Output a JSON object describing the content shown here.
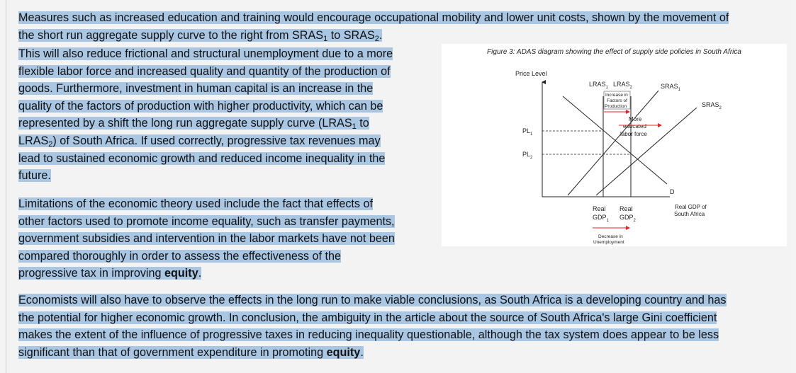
{
  "para1": {
    "line1": "Measures such as increased education and training would encourage occupational mobility and lower unit costs, shown by the movement of",
    "line2_a": "the short run aggregate supply curve to the right from SRAS",
    "line2_b": " to SRAS",
    "line2_c": ".",
    "sub1": "1",
    "sub2": "2"
  },
  "para2": {
    "l1": "This will also reduce frictional and structural unemployment due to a more",
    "l2": "flexible labor force and increased quality and quantity of the production of",
    "l3": "goods. Furthermore, investment in human capital is an increase in the",
    "l4": "quality of the factors of production with higher productivity, which can be",
    "l5_a": "represented by a shift the long run aggregate supply curve (LRAS",
    "l5_b": " to",
    "l6_a": "LRAS",
    "l6_b": ") of South Africa. If used correctly, progressive tax revenues may",
    "l7": "lead to sustained economic growth and reduced income inequality in the",
    "l8": "future.",
    "sub1": "1",
    "sub2": "2"
  },
  "para3": {
    "l1": "Limitations of the economic theory used include the fact that effects of",
    "l2": "other factors used to promote income equality, such as transfer payments,",
    "l3": "government subsidies and intervention in the labor markets have not been",
    "l4": "compared thoroughly in order to assess the effectiveness of the",
    "l5_a": "progressive tax in improving ",
    "l5_b": "equity",
    "l5_c": "."
  },
  "para4": {
    "l1": "Economists will also have to observe the effects in the long run to make viable conclusions, as South Africa is a developing country and has",
    "l2": "the potential for higher economic growth. In conclusion, the ambiguity in the article about the source of South Africa's large Gini coefficient",
    "l3": "makes the extent of the influence of progressive taxes in reducing inequality questionable, although the tax system does appear to be less",
    "l4_a": "significant than that of government expenditure in promoting ",
    "l4_b": "equity",
    "l4_c": "."
  },
  "figure": {
    "caption": "Figure 3: ADAS diagram showing the effect of supply side policies in South Africa",
    "y_axis_label": "Price Level",
    "x_axis_label_1": "Real GDP of",
    "x_axis_label_2": "South Africa",
    "lras": "LRAS",
    "sras": "SRAS",
    "sub1": "1",
    "sub2": "2",
    "pl": "PL",
    "d": "D",
    "real": "Real",
    "gdp": "GDP",
    "factors_1": "Increase in",
    "factors_2": "Factors of",
    "factors_3": "Production",
    "educated_1": "More",
    "educated_2": "educated",
    "educated_3": "labor force",
    "unemp_1": "Decrease in",
    "unemp_2": "Unemployment",
    "arrow_color": "#e8202a"
  }
}
